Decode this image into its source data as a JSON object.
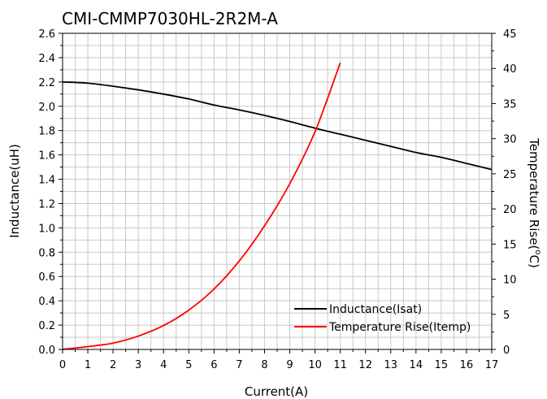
{
  "chart_data": {
    "type": "line",
    "title": "CMI-CMMP7030HL-2R2M-A",
    "xlabel": "Current(A)",
    "ylabel_left": "Inductance(uH)",
    "ylabel_right_main": "Temperature Rise(",
    "ylabel_right_sup": "o",
    "ylabel_right_end": "C)",
    "xlim": [
      0,
      17
    ],
    "ylim_left": [
      0,
      2.6
    ],
    "ylim_right": [
      0,
      45
    ],
    "x_ticks": [
      "0",
      "1",
      "2",
      "3",
      "4",
      "5",
      "6",
      "7",
      "8",
      "9",
      "10",
      "11",
      "12",
      "13",
      "14",
      "15",
      "16",
      "17"
    ],
    "y_left_ticks": [
      "0.0",
      "0.2",
      "0.4",
      "0.6",
      "0.8",
      "1.0",
      "1.2",
      "1.4",
      "1.6",
      "1.8",
      "2.0",
      "2.2",
      "2.4",
      "2.6"
    ],
    "y_right_ticks": [
      "0",
      "5",
      "10",
      "15",
      "20",
      "25",
      "30",
      "35",
      "40",
      "45"
    ],
    "grid": true,
    "legend_position": "bottom-right",
    "series": [
      {
        "name": "Inductance(Isat)",
        "axis": "left",
        "color": "#000000",
        "x": [
          0,
          1,
          2,
          3,
          4,
          5,
          6,
          7,
          8,
          9,
          10,
          11,
          12,
          13,
          14,
          15,
          16,
          17
        ],
        "y": [
          2.2,
          2.19,
          2.165,
          2.135,
          2.1,
          2.06,
          2.01,
          1.97,
          1.925,
          1.875,
          1.82,
          1.77,
          1.72,
          1.67,
          1.62,
          1.58,
          1.53,
          1.48
        ]
      },
      {
        "name": "Temperature Rise(Itemp)",
        "axis": "right",
        "color": "#ff0000",
        "x": [
          0,
          1,
          2,
          3,
          4,
          5,
          6,
          7,
          8,
          9,
          10,
          11
        ],
        "y": [
          0,
          0.4,
          0.9,
          1.9,
          3.4,
          5.6,
          8.6,
          12.6,
          17.6,
          23.6,
          31.0,
          40.8
        ]
      }
    ]
  }
}
